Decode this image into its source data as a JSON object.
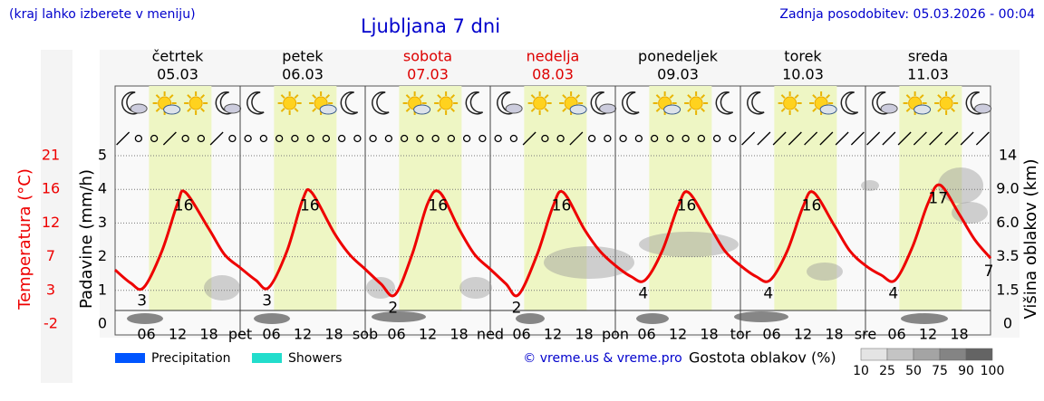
{
  "header": {
    "note": "(kraj lahko izberete v meniju)",
    "title": "Ljubljana 7 dni",
    "updated": "Zadnja posodobitev: 05.03.2026 - 00:04"
  },
  "chart_data": {
    "type": "line",
    "days": [
      {
        "name": "četrtek",
        "date": "05.03",
        "color": "#000000"
      },
      {
        "name": "petek",
        "date": "06.03",
        "color": "#000000"
      },
      {
        "name": "sobota",
        "date": "07.03",
        "color": "#dd0000"
      },
      {
        "name": "nedelja",
        "date": "08.03",
        "color": "#dd0000"
      },
      {
        "name": "ponedeljek",
        "date": "09.03",
        "color": "#000000"
      },
      {
        "name": "torek",
        "date": "10.03",
        "color": "#000000"
      },
      {
        "name": "sreda",
        "date": "11.03",
        "color": "#000000"
      }
    ],
    "x": [
      0,
      3,
      5.5,
      9,
      12,
      13.5,
      18,
      21,
      24,
      27,
      29.5,
      33,
      36,
      37.7,
      42,
      45,
      48,
      51,
      53.7,
      57,
      60,
      62.3,
      66,
      69,
      72,
      75,
      77.4,
      81,
      84,
      86,
      90,
      93,
      96,
      99,
      101.7,
      105,
      108,
      110,
      114,
      117,
      120,
      123,
      125.7,
      129,
      132,
      134,
      138,
      141,
      144,
      147,
      149.7,
      153,
      156,
      158.3,
      162,
      165,
      168
    ],
    "xlim": [
      0,
      168
    ],
    "xticks": [
      {
        "value": 6,
        "label": "06"
      },
      {
        "value": 12,
        "label": "12"
      },
      {
        "value": 18,
        "label": "18"
      },
      {
        "value": 24,
        "label": "pet"
      },
      {
        "value": 30,
        "label": "06"
      },
      {
        "value": 36,
        "label": "12"
      },
      {
        "value": 42,
        "label": "18"
      },
      {
        "value": 48,
        "label": "sob"
      },
      {
        "value": 54,
        "label": "06"
      },
      {
        "value": 60,
        "label": "12"
      },
      {
        "value": 66,
        "label": "18"
      },
      {
        "value": 72,
        "label": "ned"
      },
      {
        "value": 78,
        "label": "06"
      },
      {
        "value": 84,
        "label": "12"
      },
      {
        "value": 90,
        "label": "18"
      },
      {
        "value": 96,
        "label": "pon"
      },
      {
        "value": 102,
        "label": "06"
      },
      {
        "value": 108,
        "label": "12"
      },
      {
        "value": 114,
        "label": "18"
      },
      {
        "value": 120,
        "label": "tor"
      },
      {
        "value": 126,
        "label": "06"
      },
      {
        "value": 132,
        "label": "12"
      },
      {
        "value": 138,
        "label": "18"
      },
      {
        "value": 144,
        "label": "sre"
      },
      {
        "value": 150,
        "label": "06"
      },
      {
        "value": 156,
        "label": "12"
      },
      {
        "value": 162,
        "label": "18"
      }
    ],
    "ylabel": "Padavine (mm/h)",
    "ylim": [
      0,
      5.3
    ],
    "yticks": [
      0,
      1,
      2,
      3,
      4,
      5
    ],
    "grid": true,
    "series": [
      {
        "color": "#ee0000",
        "axis": "temperature",
        "values": [
          5.4,
          3.6,
          3,
          8,
          14.5,
          16,
          11,
          7.5,
          5.7,
          4,
          3,
          8,
          15,
          16,
          10.5,
          7.5,
          5.5,
          3.5,
          2,
          7.5,
          14.5,
          16,
          11,
          7.5,
          5.5,
          3.5,
          2,
          7.5,
          14,
          16,
          11,
          8,
          6,
          4.5,
          4,
          8,
          14,
          16,
          11.5,
          8,
          6,
          4.5,
          4,
          8,
          14,
          16,
          11.5,
          8,
          6,
          4.7,
          4,
          8.5,
          14.5,
          17,
          13,
          9.5,
          7
        ]
      }
    ],
    "temperature_axis": {
      "label": "Temperatura (°C)",
      "color": "#ee0000",
      "lim": [
        -2,
        22.38
      ],
      "ticks": [
        -2,
        {
          "value": 2.6,
          "label": "3"
        },
        {
          "value": 7.2,
          "label": "7"
        },
        {
          "value": 11.8,
          "label": "12"
        },
        {
          "value": 16.4,
          "label": "16"
        },
        21
      ]
    },
    "y2label": "Višina oblakov (km)",
    "y2ticks": [
      0,
      1.5,
      3.5,
      {
        "value": 6,
        "label": "6.0"
      },
      {
        "value": 9,
        "label": "9.0"
      },
      14
    ],
    "legend": [
      {
        "name": "Precipitation",
        "color": "#0055ff"
      },
      {
        "name": "Showers",
        "color": "#22ddcc"
      }
    ],
    "credit": "© vreme.us & vreme.pro",
    "cloud_density": {
      "label": "Gostota oblakov (%)",
      "levels": [
        10,
        25,
        50,
        75,
        90,
        100
      ]
    }
  }
}
